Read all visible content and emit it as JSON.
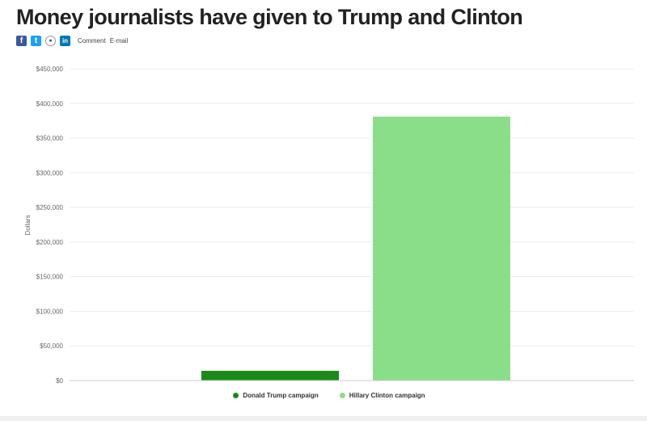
{
  "header": {
    "title": "Money journalists have given to Trump and Clinton"
  },
  "share": {
    "icons": [
      "facebook-icon",
      "twitter-icon",
      "reddit-icon",
      "linkedin-icon"
    ],
    "comment_label": "Comment",
    "email_label": "E-mail"
  },
  "chart_data": {
    "type": "bar",
    "title": "",
    "xlabel": "",
    "ylabel": "Dollars",
    "categories": [
      "Donald Trump campaign",
      "Hillary Clinton campaign"
    ],
    "values": [
      14000,
      381000
    ],
    "colors": [
      "#1b8a1b",
      "#8ade8a"
    ],
    "ylim": [
      0,
      450000
    ],
    "yticks": [
      0,
      50000,
      100000,
      150000,
      200000,
      250000,
      300000,
      350000,
      400000,
      450000
    ],
    "ytick_labels": [
      "$0",
      "$50,000",
      "$100,000",
      "$150,000",
      "$200,000",
      "$250,000",
      "$300,000",
      "$350,000",
      "$400,000",
      "$450,000"
    ],
    "grid": true,
    "legend": {
      "position": "bottom",
      "entries": [
        "Donald Trump campaign",
        "Hillary Clinton campaign"
      ]
    }
  }
}
